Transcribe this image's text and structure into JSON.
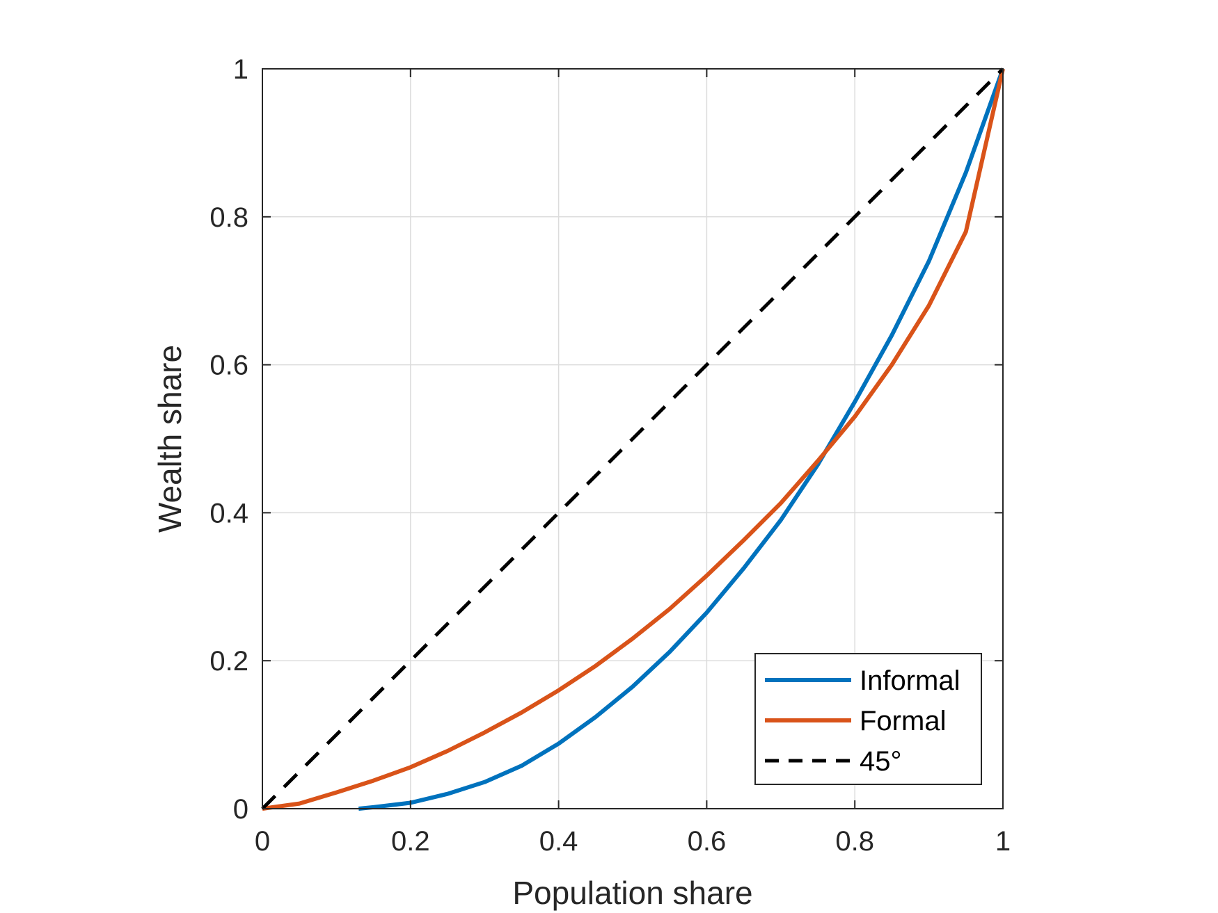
{
  "chart_data": {
    "type": "line",
    "xlabel": "Population share",
    "ylabel": "Wealth share",
    "xlim": [
      0,
      1
    ],
    "ylim": [
      0,
      1
    ],
    "xticks": [
      "0",
      "0.2",
      "0.4",
      "0.6",
      "0.8",
      "1"
    ],
    "yticks": [
      "0",
      "0.2",
      "0.4",
      "0.6",
      "0.8",
      "1"
    ],
    "grid": true,
    "legend_position": "bottom-right",
    "series": [
      {
        "name": "Informal",
        "color": "#0072BD",
        "style": "solid",
        "x": [
          0.13,
          0.15,
          0.2,
          0.25,
          0.3,
          0.35,
          0.4,
          0.45,
          0.5,
          0.55,
          0.6,
          0.65,
          0.7,
          0.75,
          0.8,
          0.85,
          0.9,
          0.95,
          1.0
        ],
        "y": [
          0.0,
          0.002,
          0.008,
          0.02,
          0.036,
          0.058,
          0.088,
          0.124,
          0.165,
          0.212,
          0.265,
          0.325,
          0.39,
          0.465,
          0.55,
          0.64,
          0.74,
          0.86,
          1.0
        ]
      },
      {
        "name": "Formal",
        "color": "#D95319",
        "style": "solid",
        "x": [
          0.0,
          0.05,
          0.1,
          0.15,
          0.2,
          0.25,
          0.3,
          0.35,
          0.4,
          0.45,
          0.5,
          0.55,
          0.6,
          0.65,
          0.7,
          0.75,
          0.8,
          0.85,
          0.9,
          0.95,
          1.0
        ],
        "y": [
          0.0,
          0.007,
          0.022,
          0.038,
          0.056,
          0.078,
          0.103,
          0.13,
          0.16,
          0.193,
          0.23,
          0.27,
          0.315,
          0.363,
          0.413,
          0.47,
          0.53,
          0.6,
          0.68,
          0.78,
          1.0
        ]
      },
      {
        "name": "45°",
        "color": "#000000",
        "style": "dashed",
        "x": [
          0,
          1
        ],
        "y": [
          0,
          1
        ]
      }
    ]
  }
}
